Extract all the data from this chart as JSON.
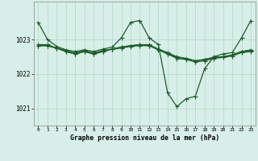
{
  "bg_color": "#d8eee8",
  "grid_color": "#b0d8c8",
  "line_color": "#1a5c28",
  "title": "Graphe pression niveau de la mer (hPa)",
  "xlim": [
    -0.5,
    23.5
  ],
  "ylim": [
    1020.5,
    1024.1
  ],
  "yticks": [
    1021,
    1022,
    1023
  ],
  "xticks": [
    0,
    1,
    2,
    3,
    4,
    5,
    6,
    7,
    8,
    9,
    10,
    11,
    12,
    13,
    14,
    15,
    16,
    17,
    18,
    19,
    20,
    21,
    22,
    23
  ],
  "line1_x": [
    0,
    1,
    2,
    3,
    4,
    5,
    6,
    7,
    8,
    9,
    10,
    11,
    12,
    13,
    14,
    15,
    16,
    17,
    18,
    19,
    20,
    21,
    22,
    23
  ],
  "line1_y": [
    1023.5,
    1023.0,
    1022.8,
    1022.7,
    1022.65,
    1022.7,
    1022.65,
    1022.72,
    1022.78,
    1023.05,
    1023.5,
    1023.55,
    1023.05,
    1022.85,
    1021.45,
    1021.05,
    1021.28,
    1021.35,
    1022.15,
    1022.5,
    1022.58,
    1022.62,
    1023.05,
    1023.55
  ],
  "line2_x": [
    0,
    1,
    2,
    3,
    4,
    5,
    6,
    7,
    8,
    9,
    10,
    11,
    12,
    13,
    14,
    15,
    16,
    17,
    18,
    19,
    20,
    21,
    22,
    23
  ],
  "line2_y": [
    1022.85,
    1022.85,
    1022.75,
    1022.68,
    1022.6,
    1022.68,
    1022.6,
    1022.68,
    1022.72,
    1022.78,
    1022.82,
    1022.85,
    1022.82,
    1022.72,
    1022.58,
    1022.48,
    1022.45,
    1022.38,
    1022.42,
    1022.48,
    1022.5,
    1022.55,
    1022.65,
    1022.7
  ],
  "line3_x": [
    0,
    1,
    2,
    3,
    4,
    5,
    6,
    7,
    8,
    9,
    10,
    11,
    12,
    13,
    14,
    15,
    16,
    17,
    18,
    19,
    20,
    21,
    22,
    23
  ],
  "line3_y": [
    1022.82,
    1022.82,
    1022.75,
    1022.65,
    1022.58,
    1022.65,
    1022.58,
    1022.65,
    1022.72,
    1022.75,
    1022.8,
    1022.82,
    1022.82,
    1022.7,
    1022.58,
    1022.45,
    1022.42,
    1022.35,
    1022.38,
    1022.45,
    1022.48,
    1022.52,
    1022.62,
    1022.65
  ],
  "line4_x": [
    0,
    1,
    2,
    3,
    4,
    5,
    6,
    7,
    8,
    9,
    10,
    11,
    12,
    13,
    14,
    15,
    16,
    17,
    18,
    19,
    20,
    21,
    22,
    23
  ],
  "line4_y": [
    1022.82,
    1022.82,
    1022.75,
    1022.65,
    1022.58,
    1022.65,
    1022.58,
    1022.65,
    1022.72,
    1022.78,
    1022.82,
    1022.85,
    1022.85,
    1022.72,
    1022.62,
    1022.5,
    1022.45,
    1022.38,
    1022.42,
    1022.48,
    1022.5,
    1022.55,
    1022.65,
    1022.68
  ]
}
